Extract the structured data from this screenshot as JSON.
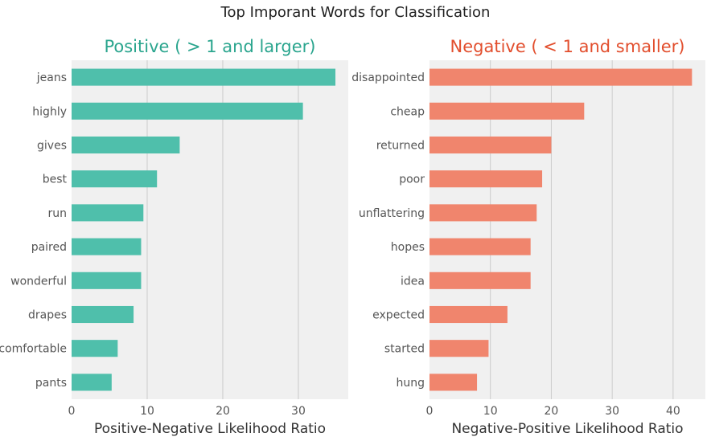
{
  "figure": {
    "suptitle": "Top Imporant Words for Classification"
  },
  "colors": {
    "background": "#ffffff",
    "plot_background": "#f0f0f0",
    "grid": "#cbcbcb",
    "tick_text": "#555555",
    "positive_bar": "#4fbfab",
    "negative_bar": "#f0856d",
    "positive_title": "#2aa58e",
    "negative_title": "#e24e2d"
  },
  "chart_data": [
    {
      "type": "bar",
      "orientation": "horizontal",
      "title": "Positive ( > 1 and larger)",
      "xlabel": "Positive-Negative Likelihood Ratio",
      "ylabel": "",
      "categories": [
        "jeans",
        "highly",
        "gives",
        "best",
        "run",
        "paired",
        "wonderful",
        "drapes",
        "comfortable",
        "pants"
      ],
      "values": [
        34.9,
        30.6,
        14.3,
        11.3,
        9.5,
        9.2,
        9.2,
        8.2,
        6.1,
        5.3
      ],
      "xlim": [
        0,
        36.6
      ],
      "xticks": [
        0,
        10,
        20,
        30
      ],
      "grid": "vertical"
    },
    {
      "type": "bar",
      "orientation": "horizontal",
      "title": "Negative ( < 1 and smaller)",
      "xlabel": "Negative-Positive Likelihood Ratio",
      "ylabel": "",
      "categories": [
        "disappointed",
        "cheap",
        "returned",
        "poor",
        "unflattering",
        "hopes",
        "idea",
        "expected",
        "started",
        "hung"
      ],
      "values": [
        43.1,
        25.4,
        20.0,
        18.5,
        17.6,
        16.6,
        16.6,
        12.8,
        9.7,
        7.8
      ],
      "xlim": [
        0,
        45.3
      ],
      "xticks": [
        0,
        10,
        20,
        30,
        40
      ],
      "grid": "vertical"
    }
  ]
}
